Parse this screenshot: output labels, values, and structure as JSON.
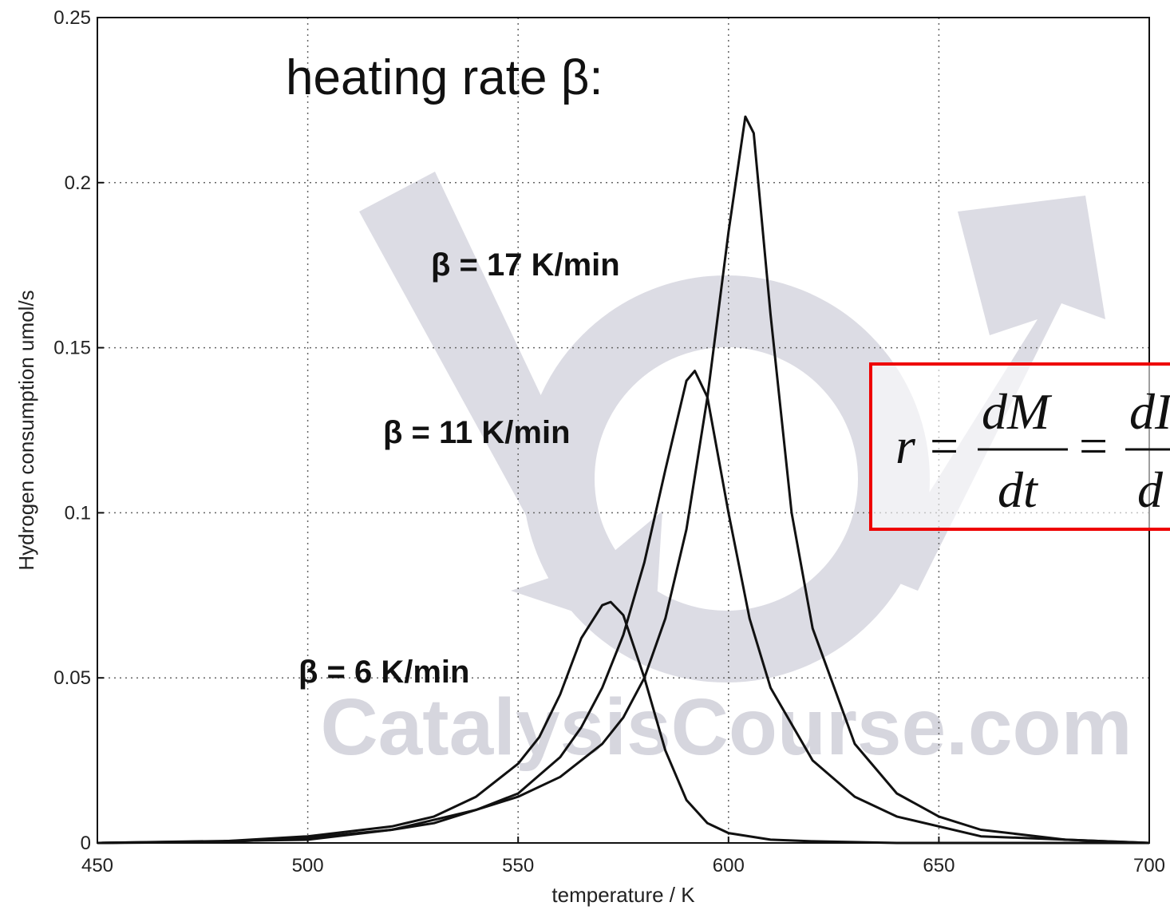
{
  "chart_data": {
    "type": "line",
    "title": "heating rate β:",
    "x_label": "temperature / K",
    "y_label": "Hydrogen consumption umol/s",
    "watermark": "CatalysisCourse.com",
    "annotations": [
      "β = 17 K/min",
      "β = 11 K/min",
      "β = 6 K/min"
    ],
    "formula": {
      "lhs": "r",
      "eq": "=",
      "num1": "dM",
      "den1": "dt",
      "num2": "dI",
      "den2": "d"
    },
    "xlim": [
      450,
      700
    ],
    "ylim": [
      0,
      0.25
    ],
    "xticks": [
      450,
      500,
      550,
      600,
      650,
      700
    ],
    "yticks": [
      0,
      0.05,
      0.1,
      0.15,
      0.2,
      0.25
    ],
    "grid": true,
    "series": [
      {
        "name": "β = 6 K/min",
        "color": "#111111",
        "x": [
          450,
          480,
          500,
          520,
          530,
          540,
          550,
          555,
          560,
          565,
          570,
          572,
          575,
          580,
          585,
          590,
          595,
          600,
          610,
          620,
          640,
          700
        ],
        "values": [
          0,
          0.0005,
          0.002,
          0.005,
          0.008,
          0.014,
          0.024,
          0.032,
          0.045,
          0.062,
          0.072,
          0.073,
          0.069,
          0.05,
          0.028,
          0.013,
          0.006,
          0.003,
          0.001,
          0.0005,
          0,
          0
        ]
      },
      {
        "name": "β = 11 K/min",
        "color": "#111111",
        "x": [
          450,
          480,
          500,
          520,
          530,
          540,
          550,
          560,
          565,
          570,
          575,
          580,
          585,
          590,
          592,
          595,
          600,
          605,
          610,
          620,
          630,
          640,
          660,
          700
        ],
        "values": [
          0,
          0.0003,
          0.0015,
          0.004,
          0.006,
          0.01,
          0.015,
          0.026,
          0.035,
          0.047,
          0.063,
          0.085,
          0.113,
          0.14,
          0.143,
          0.135,
          0.1,
          0.068,
          0.047,
          0.025,
          0.014,
          0.008,
          0.002,
          0
        ]
      },
      {
        "name": "β = 17 K/min",
        "color": "#111111",
        "x": [
          450,
          500,
          520,
          540,
          550,
          560,
          570,
          575,
          580,
          585,
          590,
          595,
          600,
          604,
          606,
          610,
          615,
          620,
          630,
          640,
          650,
          660,
          680,
          700
        ],
        "values": [
          0,
          0.001,
          0.004,
          0.01,
          0.014,
          0.02,
          0.03,
          0.038,
          0.05,
          0.068,
          0.095,
          0.135,
          0.185,
          0.22,
          0.215,
          0.16,
          0.1,
          0.065,
          0.03,
          0.015,
          0.008,
          0.004,
          0.001,
          0
        ]
      }
    ]
  }
}
